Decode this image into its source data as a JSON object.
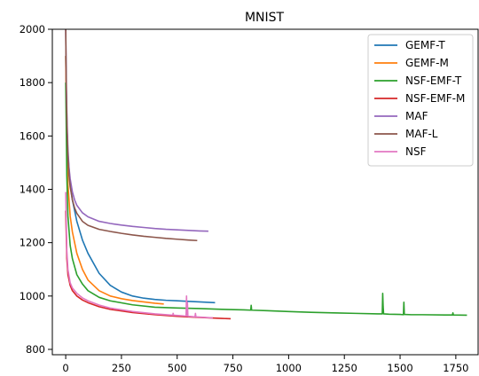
{
  "chart_data": {
    "type": "line",
    "title": "MNIST",
    "xlabel": "",
    "ylabel": "",
    "xlim": [
      -60,
      1850
    ],
    "ylim": [
      780,
      2000
    ],
    "xticks": [
      "0",
      "250",
      "500",
      "750",
      "1000",
      "1250",
      "1500",
      "1750"
    ],
    "yticks": [
      "800",
      "1000",
      "1200",
      "1400",
      "1600",
      "1800",
      "2000"
    ],
    "grid": false,
    "legend_position": "top-right",
    "series": [
      {
        "name": "GEMF-T",
        "color": "#1f77b4",
        "x": [
          0,
          5,
          10,
          20,
          30,
          50,
          75,
          100,
          150,
          200,
          250,
          300,
          350,
          400,
          450,
          500,
          550,
          600,
          670
        ],
        "y": [
          1900,
          1650,
          1530,
          1420,
          1360,
          1280,
          1210,
          1160,
          1085,
          1040,
          1015,
          1000,
          992,
          987,
          984,
          982,
          980,
          978,
          975
        ]
      },
      {
        "name": "GEMF-M",
        "color": "#ff7f0e",
        "x": [
          0,
          5,
          10,
          20,
          30,
          50,
          75,
          100,
          150,
          200,
          250,
          300,
          350,
          400,
          440
        ],
        "y": [
          1900,
          1550,
          1420,
          1300,
          1240,
          1160,
          1100,
          1060,
          1020,
          1000,
          990,
          983,
          978,
          973,
          970
        ]
      },
      {
        "name": "NSF-EMF-T",
        "color": "#2ca02c",
        "x": [
          0,
          5,
          10,
          20,
          30,
          50,
          75,
          100,
          150,
          200,
          300,
          400,
          500,
          600,
          700,
          800,
          830,
          832,
          834,
          900,
          1000,
          1100,
          1200,
          1300,
          1400,
          1420,
          1422,
          1424,
          1426,
          1450,
          1500,
          1515,
          1517,
          1519,
          1550,
          1600,
          1700,
          1735,
          1737,
          1739,
          1800
        ],
        "y": [
          1800,
          1450,
          1300,
          1190,
          1140,
          1080,
          1045,
          1020,
          995,
          982,
          967,
          958,
          955,
          953,
          950,
          948,
          947,
          965,
          947,
          945,
          942,
          939,
          937,
          935,
          933,
          933,
          1010,
          960,
          933,
          932,
          931,
          930,
          977,
          931,
          930,
          930,
          929,
          929,
          937,
          929,
          928
        ]
      },
      {
        "name": "NSF-EMF-M",
        "color": "#d62728",
        "x": [
          0,
          5,
          10,
          20,
          30,
          50,
          75,
          100,
          150,
          200,
          300,
          400,
          500,
          600,
          700,
          740
        ],
        "y": [
          1320,
          1140,
          1080,
          1040,
          1020,
          1000,
          985,
          975,
          960,
          950,
          938,
          930,
          924,
          920,
          916,
          915
        ]
      },
      {
        "name": "MAF",
        "color": "#9467bd",
        "x": [
          0,
          3,
          6,
          10,
          15,
          20,
          30,
          40,
          50,
          75,
          100,
          150,
          200,
          250,
          300,
          350,
          400,
          450,
          500,
          550,
          600,
          640
        ],
        "y": [
          2000,
          1780,
          1650,
          1550,
          1480,
          1440,
          1390,
          1360,
          1340,
          1312,
          1297,
          1280,
          1272,
          1266,
          1261,
          1257,
          1253,
          1250,
          1248,
          1246,
          1244,
          1243
        ]
      },
      {
        "name": "MAF-L",
        "color": "#8c564b",
        "x": [
          0,
          3,
          6,
          10,
          15,
          20,
          30,
          40,
          50,
          75,
          100,
          150,
          200,
          250,
          300,
          350,
          400,
          450,
          500,
          550,
          590
        ],
        "y": [
          2000,
          1760,
          1620,
          1520,
          1450,
          1410,
          1360,
          1330,
          1310,
          1280,
          1265,
          1250,
          1242,
          1235,
          1229,
          1224,
          1220,
          1216,
          1213,
          1210,
          1208
        ]
      },
      {
        "name": "NSF",
        "color": "#e377c2",
        "x": [
          0,
          5,
          10,
          20,
          30,
          50,
          75,
          100,
          150,
          200,
          300,
          400,
          480,
          482,
          484,
          540,
          542,
          544,
          546,
          548,
          550,
          580,
          582,
          584,
          600,
          640,
          660
        ],
        "y": [
          1390,
          1170,
          1100,
          1050,
          1030,
          1010,
          993,
          982,
          966,
          955,
          942,
          933,
          928,
          935,
          928,
          925,
          1000,
          925,
          975,
          925,
          924,
          922,
          935,
          922,
          921,
          919,
          918
        ]
      }
    ]
  }
}
